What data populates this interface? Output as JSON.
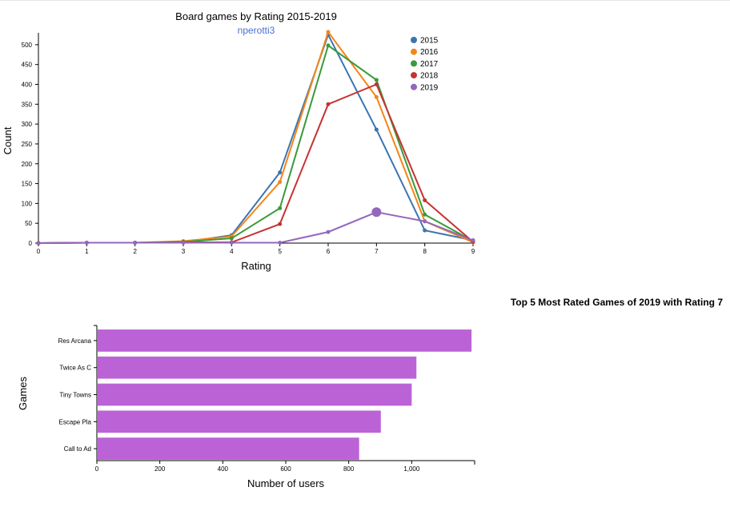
{
  "chart_data": [
    {
      "type": "line",
      "title": "Board games by Rating 2015-2019",
      "subtitle": "nperotti3",
      "subtitle_color": "#4a6fd4",
      "xlabel": "Rating",
      "ylabel": "Count",
      "xlim": [
        0,
        9
      ],
      "ylim": [
        0,
        530
      ],
      "x_ticks": [
        0,
        1,
        2,
        3,
        4,
        5,
        6,
        7,
        8,
        9
      ],
      "y_ticks": [
        0,
        50,
        100,
        150,
        200,
        250,
        300,
        350,
        400,
        450,
        500
      ],
      "x": [
        0,
        1,
        2,
        3,
        4,
        5,
        6,
        7,
        8,
        9
      ],
      "legend_position": "top-right",
      "series": [
        {
          "name": "2015",
          "color": "#3a75b0",
          "values": [
            0,
            1,
            1,
            2,
            20,
            178,
            525,
            286,
            32,
            7
          ]
        },
        {
          "name": "2016",
          "color": "#f58518",
          "values": [
            0,
            1,
            1,
            5,
            17,
            154,
            532,
            368,
            55,
            2
          ]
        },
        {
          "name": "2017",
          "color": "#3a9a3a",
          "values": [
            0,
            1,
            1,
            3,
            12,
            88,
            498,
            411,
            72,
            5
          ]
        },
        {
          "name": "2018",
          "color": "#c73232",
          "values": [
            0,
            1,
            1,
            2,
            2,
            48,
            350,
            400,
            108,
            3
          ]
        },
        {
          "name": "2019",
          "color": "#9467bd",
          "values": [
            0,
            1,
            1,
            1,
            1,
            1,
            28,
            78,
            55,
            7
          ]
        }
      ],
      "highlight": {
        "series": "2019",
        "x": 7,
        "value": 78
      }
    },
    {
      "type": "bar",
      "orientation": "horizontal",
      "title": "Top 5 Most Rated Games of 2019 with Rating 7",
      "xlabel": "Number of users",
      "ylabel": "Games",
      "xlim": [
        0,
        1200
      ],
      "x_ticks": [
        0,
        200,
        400,
        600,
        800,
        1000
      ],
      "x_tick_labels": [
        "0",
        "200",
        "400",
        "600",
        "800",
        "1,000"
      ],
      "color": "#bb63d6",
      "categories": [
        "Res Arcana",
        "Twice As C",
        "Tiny Towns",
        "Escape Pla",
        "Call to Ad"
      ],
      "values": [
        1190,
        1015,
        1000,
        902,
        833
      ]
    }
  ]
}
